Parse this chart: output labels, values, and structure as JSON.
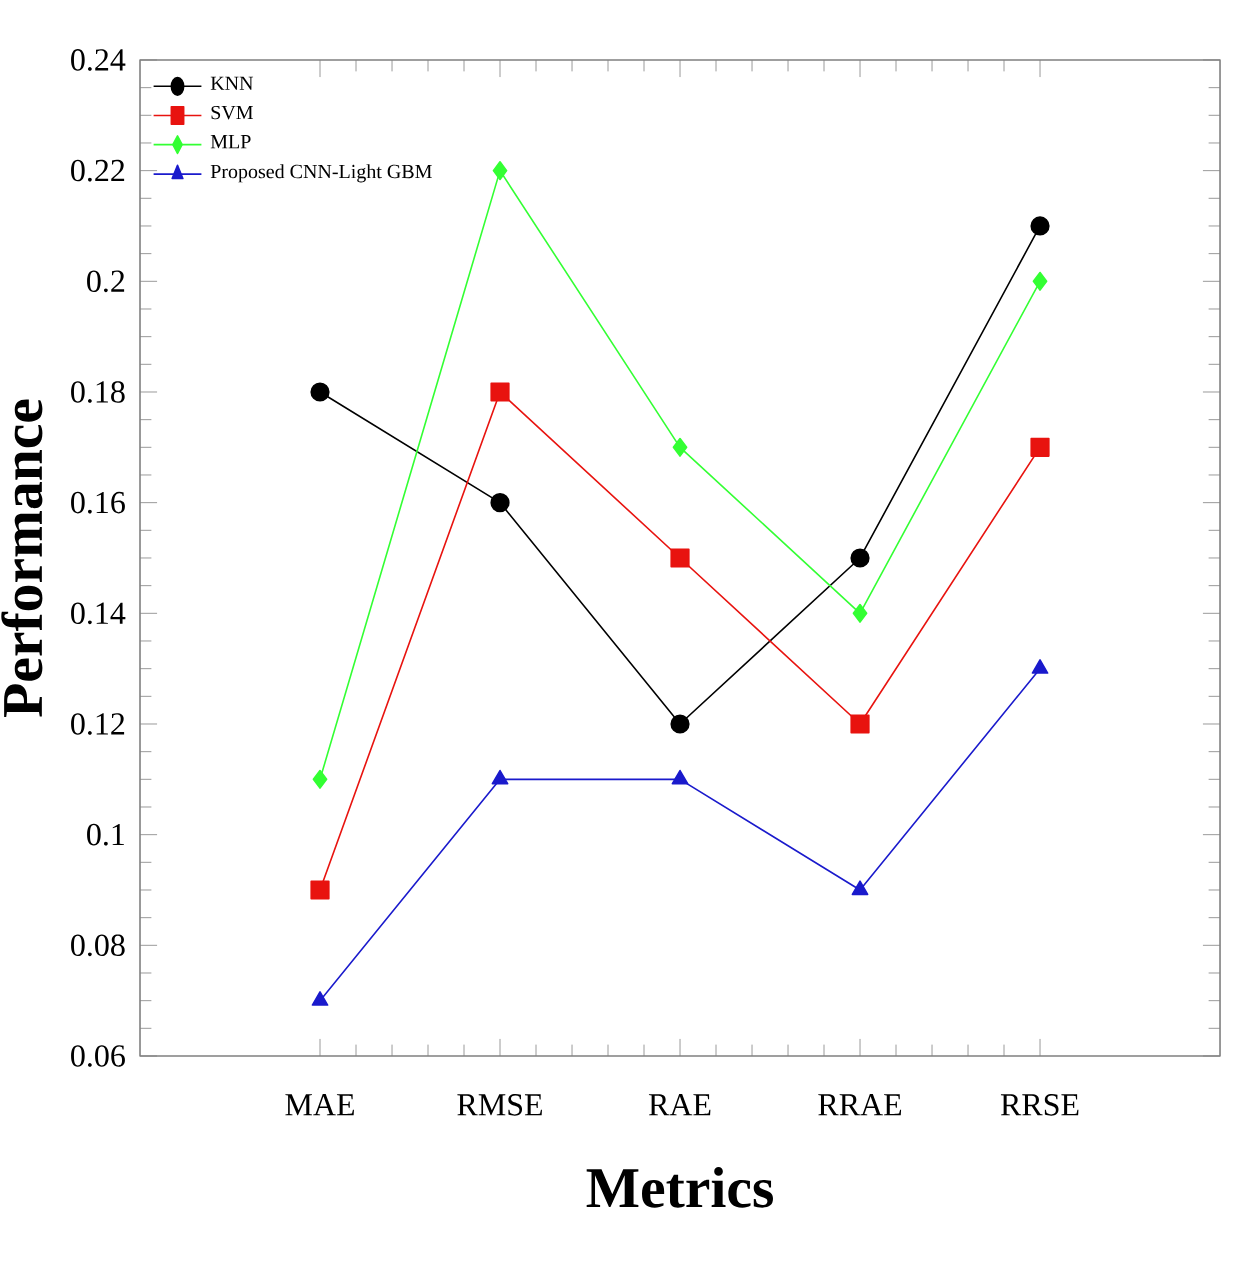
{
  "chart_data": {
    "type": "line",
    "xlabel": "Metrics",
    "ylabel": "Performance",
    "categories": [
      "MAE",
      "RMSE",
      "RAE",
      "RRAE",
      "RRSE"
    ],
    "series": [
      {
        "name": "KNN",
        "color": "#000000",
        "marker": "circle",
        "values": [
          0.18,
          0.16,
          0.12,
          0.15,
          0.21
        ]
      },
      {
        "name": "SVM",
        "color": "#e8130f",
        "marker": "square",
        "values": [
          0.09,
          0.18,
          0.15,
          0.12,
          0.17
        ]
      },
      {
        "name": "MLP",
        "color": "#33ff33",
        "marker": "diamond",
        "values": [
          0.11,
          0.22,
          0.17,
          0.14,
          0.2
        ]
      },
      {
        "name": "Proposed CNN-Light GBM",
        "color": "#1a1acc",
        "marker": "triangle",
        "values": [
          0.07,
          0.11,
          0.11,
          0.09,
          0.13
        ]
      }
    ],
    "ylim": [
      0.06,
      0.24
    ],
    "yticks": [
      0.06,
      0.08,
      0.1,
      0.12,
      0.14,
      0.16,
      0.18,
      0.2,
      0.22,
      0.24
    ],
    "legend": "top left",
    "line_style": "solid"
  }
}
